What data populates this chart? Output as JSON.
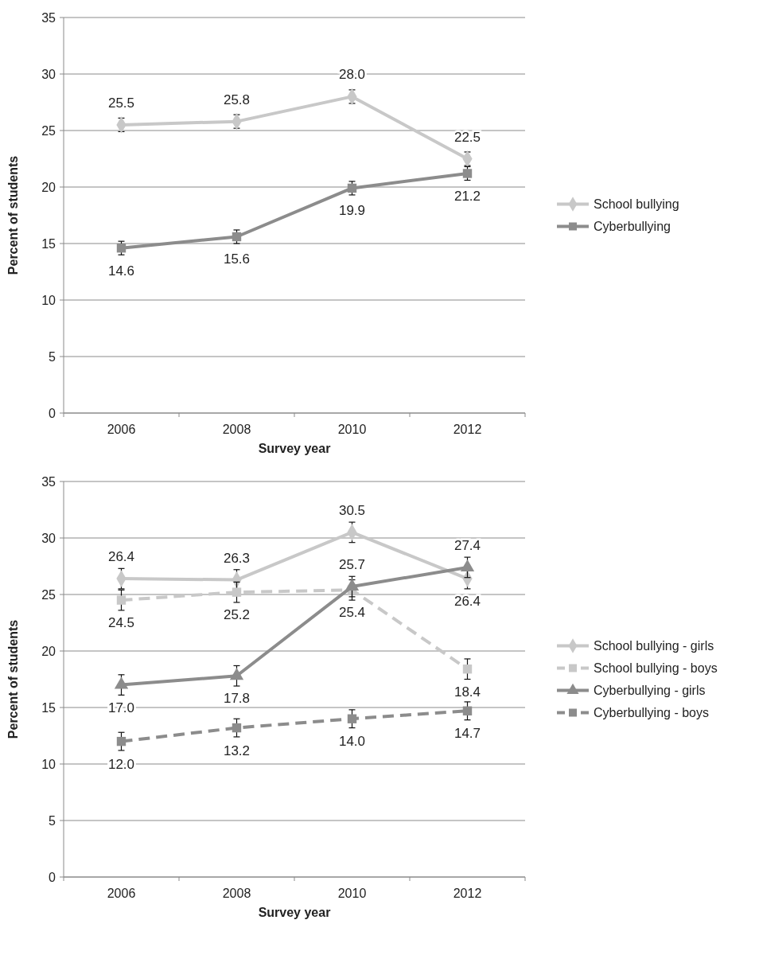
{
  "chart_data": [
    {
      "type": "line",
      "xlabel": "Survey year",
      "ylabel": "Percent of students",
      "categories": [
        "2006",
        "2008",
        "2010",
        "2012"
      ],
      "ylim": [
        0,
        35
      ],
      "yticks": [
        0,
        5,
        10,
        15,
        20,
        25,
        30,
        35
      ],
      "grid": "y",
      "legend": "right",
      "series": [
        {
          "name": "School bullying",
          "color": "#c8c8c8",
          "values": [
            25.5,
            25.8,
            28.0,
            22.5
          ],
          "value_labels": [
            "25.5",
            "25.8",
            "28.0",
            "22.5"
          ],
          "errors": [
            0.6,
            0.6,
            0.6,
            0.6
          ],
          "marker": "diamond",
          "line_style": "solid"
        },
        {
          "name": "Cyberbullying",
          "color": "#8c8c8c",
          "values": [
            14.6,
            15.6,
            19.9,
            21.2
          ],
          "value_labels": [
            "14.6",
            "15.6",
            "19.9",
            "21.2"
          ],
          "errors": [
            0.6,
            0.6,
            0.6,
            0.6
          ],
          "marker": "square",
          "line_style": "solid"
        }
      ]
    },
    {
      "type": "line",
      "xlabel": "Survey year",
      "ylabel": "Percent of students",
      "categories": [
        "2006",
        "2008",
        "2010",
        "2012"
      ],
      "ylim": [
        0,
        35
      ],
      "yticks": [
        0,
        5,
        10,
        15,
        20,
        25,
        30,
        35
      ],
      "grid": "y",
      "legend": "right",
      "series": [
        {
          "name": "School bullying - girls",
          "color": "#c8c8c8",
          "values": [
            26.4,
            26.3,
            30.5,
            26.4
          ],
          "value_labels": [
            "26.4",
            "26.3",
            "30.5",
            "26.4"
          ],
          "errors": [
            0.9,
            0.9,
            0.9,
            0.9
          ],
          "marker": "diamond",
          "line_style": "solid"
        },
        {
          "name": "School bullying - boys",
          "color": "#c8c8c8",
          "values": [
            24.5,
            25.2,
            25.4,
            18.4
          ],
          "value_labels": [
            "24.5",
            "25.2",
            "25.4",
            "18.4"
          ],
          "errors": [
            0.9,
            0.9,
            0.9,
            0.9
          ],
          "marker": "square",
          "line_style": "dashed"
        },
        {
          "name": "Cyberbullying - girls",
          "color": "#8c8c8c",
          "values": [
            17.0,
            17.8,
            25.7,
            27.4
          ],
          "value_labels": [
            "17.0",
            "17.8",
            "25.7",
            "27.4"
          ],
          "errors": [
            0.9,
            0.9,
            0.9,
            0.9
          ],
          "marker": "triangle",
          "line_style": "solid"
        },
        {
          "name": "Cyberbullying - boys",
          "color": "#8c8c8c",
          "values": [
            12.0,
            13.2,
            14.0,
            14.7
          ],
          "value_labels": [
            "12.0",
            "13.2",
            "14.0",
            "14.7"
          ],
          "errors": [
            0.8,
            0.8,
            0.8,
            0.8
          ],
          "marker": "square",
          "line_style": "dashed"
        }
      ]
    }
  ]
}
